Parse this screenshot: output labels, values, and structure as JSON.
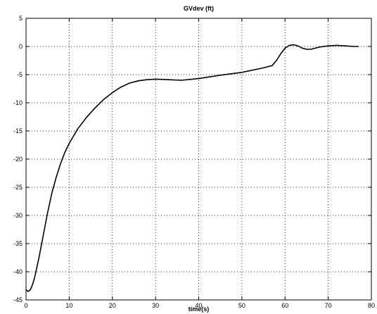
{
  "chart_data": {
    "type": "line",
    "title": "GVdev  (ft)",
    "xlabel": "time(s)",
    "ylabel": "",
    "xlim": [
      0,
      80
    ],
    "ylim": [
      -45,
      5
    ],
    "xticks": [
      0,
      10,
      20,
      30,
      40,
      50,
      60,
      70,
      80
    ],
    "yticks": [
      5,
      0,
      -5,
      -10,
      -15,
      -20,
      -25,
      -30,
      -35,
      -40,
      -45
    ],
    "grid": true,
    "series": [
      {
        "x": [
          0,
          0.5,
          1,
          1.5,
          2,
          3,
          4,
          5,
          6,
          7,
          8,
          9,
          10,
          12,
          14,
          16,
          18,
          20,
          22,
          24,
          26,
          28,
          30,
          33,
          36,
          40,
          45,
          50,
          55,
          57,
          58,
          59,
          60,
          61,
          62,
          63,
          64,
          65,
          66,
          67,
          68,
          70,
          72,
          74,
          76,
          77
        ],
        "y": [
          -43.2,
          -43.5,
          -43.2,
          -42.3,
          -41,
          -37.5,
          -33.5,
          -29.5,
          -26,
          -23.2,
          -20.8,
          -18.8,
          -17.2,
          -14.6,
          -12.6,
          -10.9,
          -9.4,
          -8.2,
          -7.2,
          -6.5,
          -6.1,
          -5.9,
          -5.8,
          -5.9,
          -6,
          -5.7,
          -5.1,
          -4.6,
          -3.8,
          -3.4,
          -2.5,
          -1.3,
          -0.3,
          0.2,
          0.3,
          0.1,
          -0.3,
          -0.5,
          -0.5,
          -0.3,
          -0.1,
          0.1,
          0.2,
          0.1,
          0,
          0
        ]
      }
    ]
  }
}
